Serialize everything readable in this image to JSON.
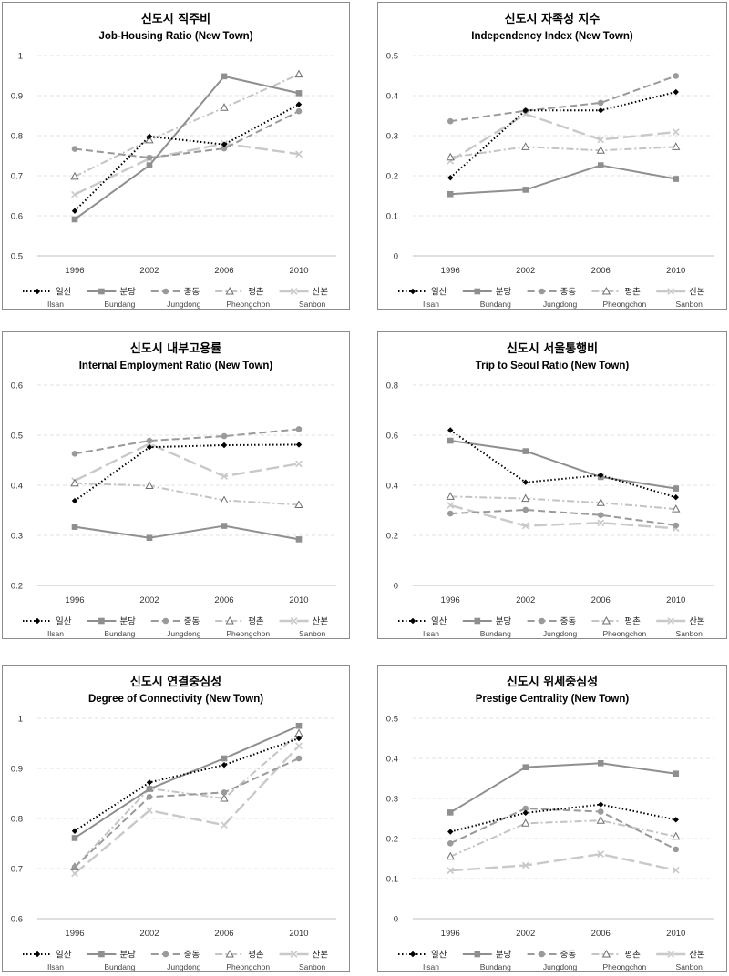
{
  "chart_data": [
    {
      "type": "line",
      "title": "신도시 직주비",
      "subtitle": "Job-Housing Ratio (New Town)",
      "categories": [
        "1996",
        "2002",
        "2006",
        "2010"
      ],
      "ylim": [
        0.5,
        1
      ],
      "yticks": [
        "0.5",
        "0.6",
        "0.7",
        "0.8",
        "0.9",
        "1"
      ],
      "series": [
        {
          "name": "Ilsan",
          "values": [
            0.612,
            0.798,
            0.778,
            0.878
          ]
        },
        {
          "name": "Bundang",
          "values": [
            0.591,
            0.726,
            0.948,
            0.906
          ]
        },
        {
          "name": "Jungdong",
          "values": [
            0.767,
            0.745,
            0.768,
            0.861
          ]
        },
        {
          "name": "Pheongchon",
          "values": [
            0.698,
            0.789,
            0.87,
            0.953
          ]
        },
        {
          "name": "Sanbon",
          "values": [
            0.653,
            0.743,
            0.78,
            0.754
          ]
        }
      ]
    },
    {
      "type": "line",
      "title": "신도시 자족성 지수",
      "subtitle": "Independency Index (New Town)",
      "categories": [
        "1996",
        "2002",
        "2006",
        "2010"
      ],
      "ylim": [
        0,
        0.5
      ],
      "yticks": [
        "0",
        "0.1",
        "0.2",
        "0.3",
        "0.4",
        "0.5"
      ],
      "series": [
        {
          "name": "Ilsan",
          "values": [
            0.195,
            0.363,
            0.363,
            0.409
          ]
        },
        {
          "name": "Bundang",
          "values": [
            0.154,
            0.165,
            0.226,
            0.192
          ]
        },
        {
          "name": "Jungdong",
          "values": [
            0.336,
            0.362,
            0.382,
            0.449
          ]
        },
        {
          "name": "Pheongchon",
          "values": [
            0.246,
            0.272,
            0.263,
            0.272
          ]
        },
        {
          "name": "Sanbon",
          "values": [
            0.237,
            0.354,
            0.29,
            0.309
          ]
        }
      ]
    },
    {
      "type": "line",
      "title": "신도시 내부고용률",
      "subtitle": "Internal Employment Ratio (New Town)",
      "categories": [
        "1996",
        "2002",
        "2006",
        "2010"
      ],
      "ylim": [
        0.2,
        0.6
      ],
      "yticks": [
        "0.2",
        "0.3",
        "0.4",
        "0.5",
        "0.6"
      ],
      "series": [
        {
          "name": "Ilsan",
          "values": [
            0.369,
            0.476,
            0.48,
            0.481
          ]
        },
        {
          "name": "Bundang",
          "values": [
            0.317,
            0.295,
            0.319,
            0.292
          ]
        },
        {
          "name": "Jungdong",
          "values": [
            0.463,
            0.489,
            0.498,
            0.512
          ]
        },
        {
          "name": "Pheongchon",
          "values": [
            0.404,
            0.399,
            0.37,
            0.361
          ]
        },
        {
          "name": "Sanbon",
          "values": [
            0.409,
            0.483,
            0.418,
            0.443
          ]
        }
      ]
    },
    {
      "type": "line",
      "title": "신도시 서울통행비",
      "subtitle": "Trip to Seoul Ratio (New Town)",
      "categories": [
        "1996",
        "2002",
        "2006",
        "2010"
      ],
      "ylim": [
        0,
        0.8
      ],
      "yticks": [
        "0",
        "0.2",
        "0.4",
        "0.6",
        "0.8"
      ],
      "series": [
        {
          "name": "Ilsan",
          "values": [
            0.62,
            0.412,
            0.44,
            0.352
          ]
        },
        {
          "name": "Bundang",
          "values": [
            0.578,
            0.536,
            0.433,
            0.387
          ]
        },
        {
          "name": "Jungdong",
          "values": [
            0.287,
            0.302,
            0.281,
            0.24
          ]
        },
        {
          "name": "Pheongchon",
          "values": [
            0.355,
            0.347,
            0.33,
            0.305
          ]
        },
        {
          "name": "Sanbon",
          "values": [
            0.32,
            0.238,
            0.25,
            0.228
          ]
        }
      ]
    },
    {
      "type": "line",
      "title": "신도시 연결중심성",
      "subtitle": "Degree of Connectivity (New Town)",
      "categories": [
        "1996",
        "2002",
        "2006",
        "2010"
      ],
      "ylim": [
        0.6,
        1
      ],
      "yticks": [
        "0.6",
        "0.7",
        "0.8",
        "0.9",
        "1"
      ],
      "series": [
        {
          "name": "Ilsan",
          "values": [
            0.775,
            0.872,
            0.907,
            0.96
          ]
        },
        {
          "name": "Bundang",
          "values": [
            0.761,
            0.859,
            0.92,
            0.985
          ]
        },
        {
          "name": "Jungdong",
          "values": [
            0.703,
            0.843,
            0.852,
            0.92
          ]
        },
        {
          "name": "Pheongchon",
          "values": [
            0.703,
            0.86,
            0.84,
            0.97
          ]
        },
        {
          "name": "Sanbon",
          "values": [
            0.69,
            0.816,
            0.787,
            0.945
          ]
        }
      ]
    },
    {
      "type": "line",
      "title": "신도시 위세중심성",
      "subtitle": "Prestige Centrality (New Town)",
      "categories": [
        "1996",
        "2002",
        "2006",
        "2010"
      ],
      "ylim": [
        0,
        0.5
      ],
      "yticks": [
        "0",
        "0.1",
        "0.2",
        "0.3",
        "0.4",
        "0.5"
      ],
      "series": [
        {
          "name": "Ilsan",
          "values": [
            0.217,
            0.264,
            0.285,
            0.247
          ]
        },
        {
          "name": "Bundang",
          "values": [
            0.265,
            0.378,
            0.388,
            0.362
          ]
        },
        {
          "name": "Jungdong",
          "values": [
            0.188,
            0.275,
            0.267,
            0.173
          ]
        },
        {
          "name": "Pheongchon",
          "values": [
            0.155,
            0.238,
            0.245,
            0.205
          ]
        },
        {
          "name": "Sanbon",
          "values": [
            0.12,
            0.133,
            0.161,
            0.121
          ]
        }
      ]
    }
  ],
  "legend": [
    {
      "kr": "일산",
      "en": "Ilsan"
    },
    {
      "kr": "분당",
      "en": "Bundang"
    },
    {
      "kr": "중동",
      "en": "Jungdong"
    },
    {
      "kr": "평촌",
      "en": "Pheongchon"
    },
    {
      "kr": "산본",
      "en": "Sanbon"
    }
  ],
  "series_styles": [
    {
      "color": "#000000",
      "dash": "1.5 2.5",
      "width": 2,
      "marker": "diamond"
    },
    {
      "color": "#8f8f8f",
      "dash": "",
      "width": 2,
      "marker": "square"
    },
    {
      "color": "#9a9a9a",
      "dash": "8 4",
      "width": 2,
      "marker": "circle"
    },
    {
      "color": "#c4c4c4",
      "dash": "8 3 2 3",
      "width": 2,
      "marker": "triangle"
    },
    {
      "color": "#c9c9c9",
      "dash": "14 5",
      "width": 2.4,
      "marker": "cross"
    }
  ]
}
